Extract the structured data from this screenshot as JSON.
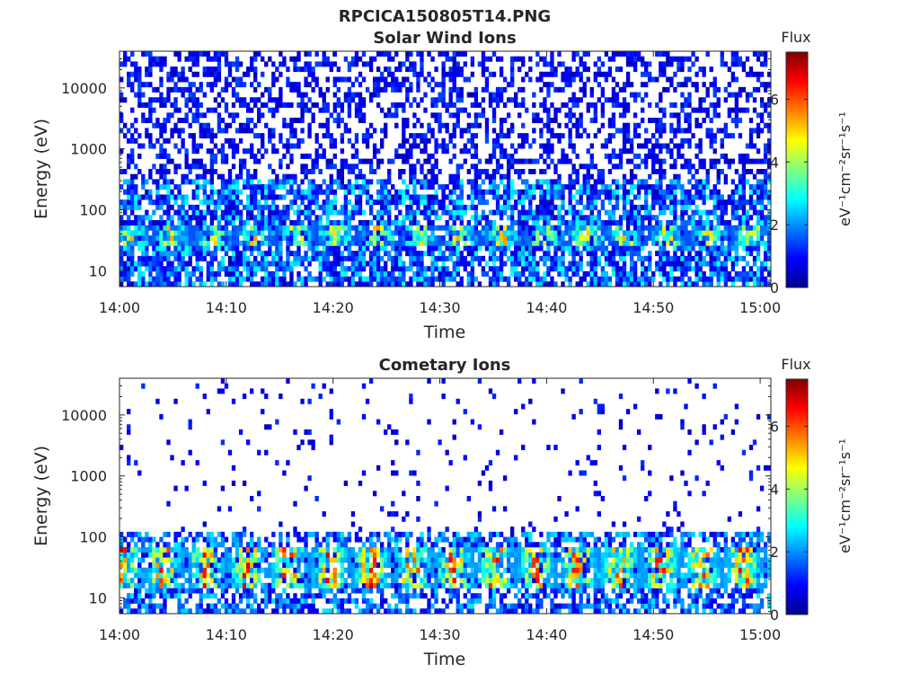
{
  "figure": {
    "title": "RPCICA150805T14.PNG",
    "colormap": [
      "#00008f",
      "#0000ff",
      "#0080ff",
      "#00ffff",
      "#80ff80",
      "#ffff00",
      "#ff8000",
      "#ff0000",
      "#800000"
    ]
  },
  "chart_data": [
    {
      "type": "heatmap",
      "title": "Solar Wind Ions",
      "xlabel": "Time",
      "ylabel": "Energy (eV)",
      "x_ticks": [
        "14:00",
        "14:10",
        "14:20",
        "14:30",
        "14:40",
        "14:50",
        "15:00"
      ],
      "x_range": [
        "14:00",
        "15:01"
      ],
      "y_scale": "log",
      "y_ticks": [
        10,
        100,
        1000,
        10000
      ],
      "y_range": [
        5.5,
        40000
      ],
      "colorbar": {
        "label": "Flux",
        "units": "eV⁻¹cm⁻²sr⁻¹s⁻¹",
        "range": [
          0,
          7.5
        ],
        "ticks": [
          0,
          2,
          4,
          6
        ]
      },
      "ion_band": {
        "energy_eV": [
          25,
          55
        ],
        "peak_flux": 5.6
      },
      "background": {
        "energy_eV": [
          5.5,
          40000
        ],
        "typical_flux": 0.8
      }
    },
    {
      "type": "heatmap",
      "title": "Cometary Ions",
      "xlabel": "Time",
      "ylabel": "Energy (eV)",
      "x_ticks": [
        "14:00",
        "14:10",
        "14:20",
        "14:30",
        "14:40",
        "14:50",
        "15:00"
      ],
      "x_range": [
        "14:00",
        "15:01"
      ],
      "y_scale": "log",
      "y_ticks": [
        10,
        100,
        1000,
        10000
      ],
      "y_range": [
        5.5,
        40000
      ],
      "colorbar": {
        "label": "Flux",
        "units": "eV⁻¹cm⁻²sr⁻¹s⁻¹",
        "range": [
          0,
          7.5
        ],
        "ticks": [
          0,
          2,
          4,
          6
        ]
      },
      "ion_band": {
        "energy_eV": [
          15,
          70
        ],
        "peak_flux": 7.0
      },
      "background": {
        "energy_eV": [
          5.5,
          130
        ],
        "typical_flux": 1.0
      }
    }
  ]
}
